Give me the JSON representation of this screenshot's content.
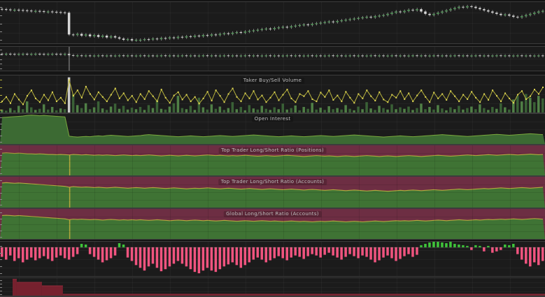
{
  "chart_data": [
    {
      "type": "candles",
      "title": "",
      "n": 130,
      "ylim": [
        30,
        100
      ],
      "highlight_index": null,
      "colors": {
        "bg": "#1b1b1b",
        "up": "#1f4a28",
        "up_border": "#5ea063",
        "down": "#d8d8d8",
        "wick": "rgba(165,165,165,0.8)",
        "tick": "#8a8a8a",
        "highlight": "rgba(200,200,200,0.35)"
      },
      "close": [
        88,
        87.5,
        87,
        87,
        86.5,
        86,
        85.5,
        85,
        85,
        84.5,
        84,
        84,
        83.5,
        83,
        82.5,
        82,
        45,
        44,
        46,
        43,
        45,
        42,
        44,
        41,
        43,
        40,
        42,
        40,
        38,
        36,
        37,
        35,
        36,
        36,
        37,
        36.5,
        38,
        37,
        39,
        38.5,
        40,
        39,
        41,
        40,
        42,
        41,
        43,
        42,
        44,
        43,
        45,
        44,
        46,
        47,
        46,
        48,
        49,
        48,
        50,
        51,
        52,
        53,
        54,
        55,
        54,
        56,
        57,
        58,
        57,
        59,
        60,
        61,
        62,
        61,
        63,
        64,
        65,
        66,
        67,
        66,
        68,
        69,
        70,
        71,
        72,
        73,
        74,
        75,
        74,
        76,
        77,
        78,
        80,
        82,
        84,
        83,
        85,
        87,
        86,
        88,
        84,
        80,
        78,
        80,
        82,
        84,
        86,
        88,
        90,
        92,
        91,
        93,
        92,
        90,
        88,
        86,
        84,
        82,
        80,
        78,
        79,
        77,
        75,
        74,
        76,
        78,
        80,
        82,
        84,
        85
      ]
    },
    {
      "type": "candles",
      "title": "",
      "n": 130,
      "ylim": [
        40,
        100
      ],
      "highlight_index": 16,
      "colors": {
        "bg": "#1b1b1b",
        "up": "#2a5230",
        "up_border": "#5ea063",
        "down": "#cfcfcf",
        "wick": "rgba(150,150,150,0.7)",
        "tick": "#8a8a8a",
        "highlight": "rgba(190,190,190,0.4)"
      },
      "close": [
        82,
        82.4,
        82,
        81.6,
        82,
        82.2,
        81.8,
        82,
        82.4,
        82,
        81.8,
        82,
        82.2,
        82,
        81.7,
        82,
        79,
        78,
        78.4,
        77.8,
        78.2,
        77.6,
        78,
        78.3,
        77.7,
        78.1,
        77.9,
        78,
        78.4,
        77.8,
        78.2,
        77.6,
        78,
        78.3,
        77.7,
        78.1,
        77.9,
        78,
        78.4,
        77.8,
        78.2,
        77.6,
        78,
        78.3,
        77.7,
        78.1,
        77.9,
        78,
        78.4,
        77.8,
        78.2,
        77.6,
        78,
        78.3,
        77.7,
        78.1,
        77.9,
        78,
        78.4,
        77.8,
        78.2,
        77.6,
        78,
        78.3,
        77.7,
        78.1,
        77.9,
        78,
        78.4,
        77.8,
        78.2,
        77.6,
        78,
        78.3,
        77.7,
        78.1,
        77.9,
        78,
        78.4,
        77.8,
        78.2,
        77.6,
        78,
        78.3,
        77.7,
        78.1,
        77.9,
        78,
        78.4,
        77.8,
        78.2,
        77.6,
        78,
        78.3,
        77.7,
        78.1,
        77.9,
        78,
        78.4,
        77.8,
        78.2,
        77.6,
        78,
        78.3,
        77.7,
        78.1,
        77.9,
        78,
        78.4,
        77.8,
        78.2,
        77.6,
        78,
        78.3,
        77.7,
        78.1,
        77.9,
        78,
        78.4,
        77.8,
        78.2,
        77.6,
        78,
        78.3,
        77.7,
        78.1,
        77.9,
        78,
        78.2,
        77.8
      ]
    },
    {
      "type": "line_bars",
      "title": "Taker Buy/Sell Volume",
      "n": 130,
      "ylim": [
        0,
        100
      ],
      "highlight_index": 16,
      "colors": {
        "bg": "#1b1b1b",
        "line": "#b7b23c",
        "dot": "#e3da55",
        "bar": "#508046",
        "bar2": "#3a6136",
        "highlight": "#c9c9c9",
        "tick": "#b7b23c"
      },
      "line": [
        30,
        42,
        25,
        50,
        35,
        22,
        45,
        60,
        38,
        28,
        48,
        33,
        55,
        30,
        40,
        25,
        88,
        45,
        60,
        40,
        70,
        50,
        35,
        55,
        42,
        30,
        48,
        65,
        38,
        52,
        33,
        45,
        28,
        50,
        36,
        58,
        44,
        30,
        62,
        40,
        26,
        46,
        55,
        35,
        48,
        30,
        42,
        24,
        38,
        56,
        32,
        60,
        45,
        28,
        50,
        65,
        42,
        30,
        52,
        38,
        58,
        35,
        46,
        28,
        40,
        55,
        33,
        48,
        62,
        38,
        28,
        50,
        44,
        58,
        36,
        30,
        54,
        42,
        60,
        34,
        46,
        30,
        56,
        40,
        26,
        50,
        38,
        60,
        44,
        32,
        55,
        35,
        28,
        48,
        40,
        58,
        36,
        52,
        30,
        46,
        60,
        42,
        28,
        54,
        38,
        50,
        34,
        58,
        44,
        30,
        48,
        36,
        56,
        40,
        28,
        50,
        34,
        60,
        45,
        30,
        52,
        38,
        26,
        48,
        58,
        36,
        44,
        62,
        50,
        68
      ],
      "bars": [
        8,
        5,
        12,
        6,
        18,
        9,
        30,
        14,
        7,
        10,
        22,
        8,
        15,
        6,
        11,
        9,
        95,
        50,
        20,
        12,
        25,
        9,
        14,
        30,
        11,
        7,
        16,
        24,
        10,
        18,
        8,
        13,
        9,
        15,
        7,
        20,
        12,
        35,
        10,
        8,
        16,
        25,
        45,
        12,
        9,
        18,
        7,
        40,
        14,
        8,
        22,
        10,
        16,
        7,
        12,
        28,
        9,
        15,
        6,
        20,
        11,
        8,
        18,
        10,
        7,
        14,
        9,
        24,
        8,
        12,
        19,
        6,
        15,
        10,
        26,
        8,
        13,
        7,
        17,
        9,
        12,
        8,
        20,
        10,
        6,
        16,
        9,
        28,
        11,
        7,
        18,
        12,
        8,
        22,
        9,
        14,
        10,
        16,
        7,
        12,
        24,
        9,
        15,
        8,
        20,
        11,
        6,
        14,
        9,
        18,
        8,
        12,
        16,
        9,
        22,
        12,
        7,
        15,
        10,
        25,
        14,
        8,
        35,
        45,
        30,
        50,
        40,
        28,
        45,
        38
      ]
    },
    {
      "type": "area",
      "title": "Open Interest",
      "n": 130,
      "ylim": [
        0,
        100
      ],
      "colors": {
        "bg": "#1b1b1b",
        "fill": "#3c6a33",
        "edge": "#7aa93e",
        "tick": "#8a8a8a"
      },
      "values": [
        88,
        89,
        90,
        91,
        92,
        93,
        95,
        96,
        95,
        94,
        95,
        94,
        93,
        92,
        91,
        90,
        26,
        24,
        23,
        24,
        25,
        24,
        26,
        27,
        26,
        28,
        29,
        28,
        27,
        26,
        25,
        26,
        27,
        28,
        30,
        31,
        30,
        29,
        28,
        27,
        26,
        25,
        24,
        25,
        26,
        27,
        26,
        25,
        24,
        25,
        26,
        27,
        28,
        27,
        26,
        25,
        26,
        27,
        28,
        29,
        30,
        29,
        28,
        27,
        26,
        25,
        24,
        25,
        26,
        27,
        26,
        25,
        24,
        25,
        26,
        27,
        28,
        27,
        26,
        25,
        26,
        27,
        28,
        29,
        30,
        29,
        28,
        27,
        26,
        25,
        24,
        23,
        24,
        25,
        26,
        27,
        26,
        25,
        24,
        25,
        26,
        27,
        28,
        29,
        30,
        31,
        30,
        29,
        28,
        27,
        26,
        25,
        26,
        27,
        28,
        29,
        30,
        31,
        32,
        31,
        30,
        29,
        30,
        31,
        32,
        33,
        34,
        33,
        32,
        31
      ]
    },
    {
      "type": "ratio",
      "title": "Top Trader Long/Short Ratio (Positions)",
      "n": 130,
      "ylim": [
        0,
        100
      ],
      "highlight_index": 16,
      "colors": {
        "green": "#3f7334",
        "red": "#6d2e43",
        "line": "#b3a83e",
        "tick": "#8a8a8a"
      },
      "values": [
        74,
        75,
        74,
        73,
        74,
        73,
        72,
        72,
        71,
        72,
        71,
        70,
        70,
        69,
        70,
        69,
        68,
        70,
        69,
        68,
        69,
        68,
        67,
        68,
        67,
        68,
        67,
        66,
        67,
        68,
        67,
        66,
        67,
        66,
        67,
        68,
        67,
        66,
        65,
        66,
        67,
        66,
        65,
        66,
        67,
        66,
        65,
        66,
        67,
        68,
        67,
        66,
        67,
        66,
        65,
        66,
        65,
        66,
        67,
        66,
        65,
        64,
        65,
        66,
        65,
        64,
        65,
        66,
        67,
        66,
        65,
        64,
        63,
        64,
        65,
        66,
        65,
        64,
        65,
        64,
        63,
        64,
        65,
        64,
        63,
        64,
        65,
        66,
        65,
        64,
        63,
        64,
        65,
        64,
        63,
        64,
        65,
        66,
        65,
        64,
        63,
        64,
        65,
        66,
        67,
        66,
        65,
        64,
        65,
        66,
        67,
        68,
        67,
        66,
        67,
        68,
        69,
        68,
        67,
        68,
        69,
        70,
        69,
        68,
        69,
        70,
        71,
        70,
        69,
        70
      ]
    },
    {
      "type": "ratio",
      "title": "Top Trader Long/Short Ratio (Accounts)",
      "n": 130,
      "ylim": [
        0,
        100
      ],
      "highlight_index": 16,
      "colors": {
        "green": "#3f7334",
        "red": "#6d2e43",
        "line": "#b3a83e",
        "tick": "#8a8a8a"
      },
      "values": [
        80,
        81,
        80,
        79,
        80,
        79,
        78,
        77,
        76,
        75,
        74,
        73,
        72,
        71,
        70,
        69,
        66,
        68,
        67,
        66,
        67,
        66,
        65,
        66,
        65,
        64,
        65,
        66,
        65,
        64,
        63,
        64,
        65,
        64,
        63,
        64,
        65,
        64,
        63,
        62,
        63,
        64,
        63,
        62,
        61,
        62,
        63,
        62,
        63,
        64,
        63,
        62,
        61,
        62,
        63,
        62,
        61,
        60,
        61,
        62,
        61,
        60,
        59,
        60,
        61,
        60,
        59,
        58,
        59,
        60,
        59,
        58,
        57,
        58,
        59,
        58,
        57,
        56,
        57,
        58,
        57,
        56,
        55,
        56,
        57,
        56,
        55,
        54,
        55,
        56,
        55,
        54,
        53,
        54,
        55,
        56,
        55,
        56,
        57,
        56,
        55,
        56,
        57,
        58,
        57,
        56,
        57,
        58,
        59,
        60,
        59,
        58,
        59,
        60,
        61,
        62,
        61,
        62,
        63,
        64,
        63,
        62,
        63,
        64,
        65,
        64,
        63,
        64,
        65,
        66
      ]
    },
    {
      "type": "ratio",
      "title": "Global Long/Short Ratio (Accounts)",
      "n": 130,
      "ylim": [
        0,
        100
      ],
      "highlight_index": 16,
      "colors": {
        "green": "#3f7334",
        "red": "#6d2e43",
        "line": "#b3a83e",
        "tick": "#8a8a8a"
      },
      "values": [
        78,
        79,
        78,
        77,
        78,
        77,
        76,
        75,
        74,
        73,
        72,
        71,
        70,
        69,
        68,
        67,
        64,
        66,
        65,
        66,
        65,
        64,
        65,
        64,
        63,
        64,
        65,
        64,
        63,
        64,
        63,
        64,
        63,
        64,
        63,
        62,
        63,
        64,
        63,
        62,
        61,
        62,
        63,
        62,
        61,
        62,
        63,
        62,
        61,
        62,
        61,
        60,
        61,
        62,
        61,
        60,
        59,
        60,
        61,
        60,
        59,
        60,
        61,
        60,
        59,
        60,
        59,
        58,
        59,
        60,
        59,
        58,
        59,
        58,
        57,
        58,
        59,
        58,
        59,
        60,
        59,
        58,
        57,
        58,
        59,
        58,
        57,
        58,
        59,
        60,
        59,
        58,
        59,
        60,
        61,
        60,
        61,
        60,
        61,
        62,
        61,
        60,
        61,
        62,
        63,
        62,
        61,
        62,
        63,
        64,
        63,
        62,
        63,
        64,
        63,
        64,
        65,
        64,
        65,
        66,
        65,
        66,
        67,
        66,
        65,
        66,
        67,
        68,
        67,
        66
      ]
    },
    {
      "type": "delta_bars",
      "title": "",
      "n": 130,
      "ylim": [
        -42,
        8
      ],
      "colors": {
        "bg": "#1b1b1b",
        "pos": "#3fc53a",
        "neg": "#f0547f",
        "tick": "#8a8a8a"
      },
      "values": [
        -14,
        -18,
        -12,
        -20,
        -16,
        -22,
        -18,
        -15,
        -19,
        -16,
        -13,
        -17,
        -20,
        -15,
        -12,
        -16,
        -18,
        -14,
        -10,
        5,
        4,
        -10,
        -14,
        -18,
        -22,
        -19,
        -16,
        -12,
        6,
        4,
        -15,
        -20,
        -26,
        -30,
        -34,
        -28,
        -24,
        -30,
        -35,
        -32,
        -28,
        -24,
        -20,
        -24,
        -28,
        -32,
        -36,
        -38,
        -34,
        -30,
        -34,
        -36,
        -32,
        -28,
        -25,
        -22,
        -26,
        -30,
        -26,
        -22,
        -18,
        -15,
        -18,
        -22,
        -19,
        -16,
        -13,
        -16,
        -19,
        -15,
        -12,
        -14,
        -17,
        -13,
        -10,
        -12,
        -15,
        -11,
        -8,
        -12,
        -15,
        -18,
        -14,
        -10,
        -13,
        -16,
        -12,
        -14,
        -18,
        -22,
        -19,
        -15,
        -12,
        -16,
        -20,
        -17,
        -13,
        -10,
        -14,
        -11,
        3,
        5,
        7,
        8,
        9,
        7,
        6,
        8,
        5,
        4,
        3,
        2,
        -4,
        3,
        2,
        -6,
        2,
        -8,
        -6,
        -4,
        4,
        3,
        5,
        -10,
        -18,
        -24,
        -28,
        -22,
        -26,
        -20
      ]
    },
    {
      "type": "step_area",
      "title": "",
      "n": 130,
      "ylim": [
        0,
        100
      ],
      "colors": {
        "bg": "#1b1b1b",
        "fill": "#76212e",
        "edge": "#8f2a3a",
        "tick": "#8a8a8a"
      },
      "steps": [
        [
          0,
          2,
          0
        ],
        [
          3,
          3,
          95
        ],
        [
          4,
          9,
          78
        ],
        [
          10,
          14,
          58
        ],
        [
          15,
          129,
          10
        ]
      ]
    }
  ]
}
